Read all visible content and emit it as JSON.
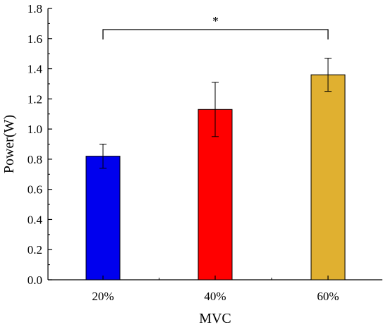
{
  "chart_data": {
    "type": "bar",
    "categories": [
      "20%",
      "40%",
      "60%"
    ],
    "values": [
      0.82,
      1.13,
      1.36
    ],
    "error": [
      0.08,
      0.18,
      0.11
    ],
    "colors": [
      "#0000ee",
      "#ff0000",
      "#e0b030"
    ],
    "xlabel": "MVC",
    "ylabel": "Power(W)",
    "ylim": [
      0.0,
      1.8
    ],
    "yticks": [
      0.0,
      0.2,
      0.4,
      0.6,
      0.8,
      1.0,
      1.2,
      1.4,
      1.6,
      1.8
    ],
    "ytick_labels": [
      "0.0",
      "0.2",
      "0.4",
      "0.6",
      "0.8",
      "1.0",
      "1.2",
      "1.4",
      "1.6",
      "1.8"
    ],
    "significance": {
      "from": "20%",
      "to": "60%",
      "label": "*"
    },
    "grid": false,
    "legend": "none"
  }
}
